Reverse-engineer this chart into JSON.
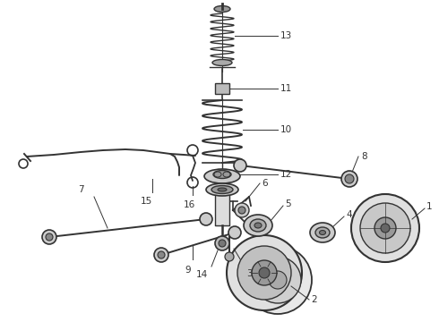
{
  "bg_color": "#ffffff",
  "dark_color": "#333333",
  "fig_width": 4.9,
  "fig_height": 3.6,
  "dpi": 100,
  "xlim": [
    0,
    490
  ],
  "ylim": [
    0,
    360
  ]
}
